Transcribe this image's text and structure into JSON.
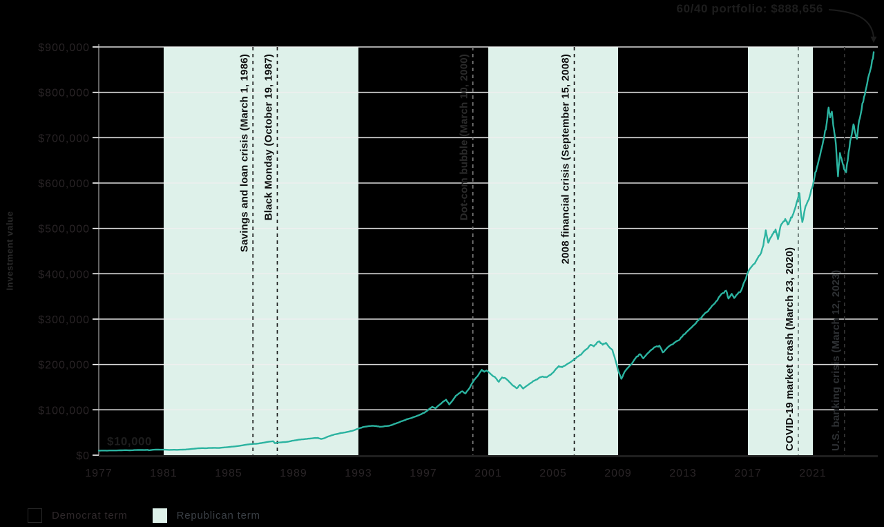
{
  "portfolio_label": "60/40 portfolio: $888,656",
  "start_label": "$10,000",
  "y_axis_title": "Investment value",
  "legend": {
    "democrat": "Democrat term",
    "republican": "Republican term"
  },
  "colors": {
    "background": "#000000",
    "line": "#2bb3a0",
    "band": "#def1ea",
    "grid": "#f0f0f0",
    "tick_text": "#292426",
    "dark_text": "#1d1d1d",
    "y_axis_line": "#c9c9c9",
    "x_axis_line": "#1f1f1f"
  },
  "chart_data": {
    "type": "line",
    "title": "",
    "xlabel": "",
    "ylabel": "Investment value",
    "x_range": [
      1977,
      2025
    ],
    "y_range": [
      0,
      900000
    ],
    "x_ticks": [
      1977,
      1981,
      1985,
      1989,
      1993,
      1997,
      2001,
      2005,
      2009,
      2013,
      2017,
      2021
    ],
    "y_ticks": [
      0,
      100000,
      200000,
      300000,
      400000,
      500000,
      600000,
      700000,
      800000,
      900000
    ],
    "grid": "horizontal-only",
    "legend_position": "bottom-left",
    "start_value": 10000,
    "end_value": 888656,
    "bands": {
      "label": "Republican term",
      "other_label": "Democrat term",
      "ranges": [
        [
          1981,
          1993
        ],
        [
          2001,
          2009
        ],
        [
          2017,
          2021
        ]
      ]
    },
    "events": [
      {
        "label": "Savings and loan crisis (March 1, 1986)",
        "x_year": 1986.5,
        "anchor": "top",
        "line_color": "#161616",
        "text_color": "#0e0e0e"
      },
      {
        "label": "Black Monday (October 19, 1987)",
        "x_year": 1988.0,
        "anchor": "top",
        "line_color": "#161616",
        "text_color": "#0e0e0e"
      },
      {
        "label": "Dot-com bubble (March 10, 2000)",
        "x_year": 2000.05,
        "anchor": "top",
        "line_color": "#7d7d7d",
        "text_color": "#2b2b2b"
      },
      {
        "label": "2008 financial crisis (September 15, 2008)",
        "x_year": 2006.3,
        "anchor": "top",
        "line_color": "#161616",
        "text_color": "#0e0e0e"
      },
      {
        "label": "COVID-19 market crash (March 23, 2020)",
        "x_year": 2020.1,
        "anchor": "bottom",
        "line_color": "#5c6b67",
        "text_color": "#0e0e0e"
      },
      {
        "label": "U.S. banking crisis (March 12, 2023)",
        "x_year": 2022.95,
        "anchor": "bottom",
        "line_color": "#333333",
        "text_color": "#2e3134"
      }
    ],
    "series": [
      {
        "name": "60/40 portfolio",
        "points": [
          [
            1977.0,
            10000
          ],
          [
            1977.25,
            10200
          ],
          [
            1977.5,
            10100
          ],
          [
            1977.75,
            10400
          ],
          [
            1978.0,
            10300
          ],
          [
            1978.3,
            10600
          ],
          [
            1978.6,
            10900
          ],
          [
            1978.9,
            10700
          ],
          [
            1979.2,
            11200
          ],
          [
            1979.5,
            11500
          ],
          [
            1979.8,
            11300
          ],
          [
            1980.0,
            11700
          ],
          [
            1980.1,
            10700
          ],
          [
            1980.35,
            11900
          ],
          [
            1980.6,
            12300
          ],
          [
            1980.85,
            12100
          ],
          [
            1981.1,
            12000
          ],
          [
            1981.35,
            11600
          ],
          [
            1981.6,
            11900
          ],
          [
            1981.85,
            11700
          ],
          [
            1982.1,
            12100
          ],
          [
            1982.35,
            12400
          ],
          [
            1982.6,
            13300
          ],
          [
            1982.85,
            14200
          ],
          [
            1983.1,
            15000
          ],
          [
            1983.35,
            15600
          ],
          [
            1983.6,
            15400
          ],
          [
            1983.85,
            15900
          ],
          [
            1984.1,
            16100
          ],
          [
            1984.35,
            15800
          ],
          [
            1984.6,
            16600
          ],
          [
            1984.85,
            17400
          ],
          [
            1985.1,
            18300
          ],
          [
            1985.35,
            19200
          ],
          [
            1985.6,
            20300
          ],
          [
            1985.85,
            21600
          ],
          [
            1986.1,
            23200
          ],
          [
            1986.35,
            24400
          ],
          [
            1986.6,
            24900
          ],
          [
            1986.85,
            25800
          ],
          [
            1987.1,
            27200
          ],
          [
            1987.35,
            28900
          ],
          [
            1987.6,
            30200
          ],
          [
            1987.75,
            30800
          ],
          [
            1987.85,
            26400
          ],
          [
            1988.0,
            27600
          ],
          [
            1988.25,
            28300
          ],
          [
            1988.5,
            29000
          ],
          [
            1988.75,
            30300
          ],
          [
            1989.0,
            32200
          ],
          [
            1989.25,
            33600
          ],
          [
            1989.5,
            34800
          ],
          [
            1989.75,
            35600
          ],
          [
            1990.0,
            36600
          ],
          [
            1990.25,
            37600
          ],
          [
            1990.5,
            38000
          ],
          [
            1990.7,
            35600
          ],
          [
            1990.9,
            37400
          ],
          [
            1991.1,
            40600
          ],
          [
            1991.35,
            43800
          ],
          [
            1991.6,
            46200
          ],
          [
            1991.85,
            48200
          ],
          [
            1992.1,
            49800
          ],
          [
            1992.35,
            51400
          ],
          [
            1992.6,
            53400
          ],
          [
            1992.85,
            56600
          ],
          [
            1993.1,
            59800
          ],
          [
            1993.35,
            62400
          ],
          [
            1993.6,
            63800
          ],
          [
            1993.85,
            64800
          ],
          [
            1994.1,
            64200
          ],
          [
            1994.3,
            62600
          ],
          [
            1994.55,
            63400
          ],
          [
            1994.8,
            64400
          ],
          [
            1995.05,
            66400
          ],
          [
            1995.3,
            69800
          ],
          [
            1995.55,
            73200
          ],
          [
            1995.8,
            76600
          ],
          [
            1996.05,
            79800
          ],
          [
            1996.3,
            82400
          ],
          [
            1996.55,
            85800
          ],
          [
            1996.8,
            89400
          ],
          [
            1997.05,
            93400
          ],
          [
            1997.3,
            99800
          ],
          [
            1997.55,
            106800
          ],
          [
            1997.75,
            103400
          ],
          [
            1997.95,
            109800
          ],
          [
            1998.15,
            115800
          ],
          [
            1998.4,
            122400
          ],
          [
            1998.6,
            111800
          ],
          [
            1998.8,
            120400
          ],
          [
            1999.0,
            130800
          ],
          [
            1999.2,
            136400
          ],
          [
            1999.4,
            140800
          ],
          [
            1999.6,
            136200
          ],
          [
            1999.8,
            145800
          ],
          [
            2000.0,
            158400
          ],
          [
            2000.2,
            168800
          ],
          [
            2000.4,
            177400
          ],
          [
            2000.6,
            188400
          ],
          [
            2000.75,
            183800
          ],
          [
            2000.9,
            186800
          ],
          [
            2001.05,
            182400
          ],
          [
            2001.25,
            175800
          ],
          [
            2001.45,
            170400
          ],
          [
            2001.65,
            161800
          ],
          [
            2001.85,
            171400
          ],
          [
            2002.05,
            169800
          ],
          [
            2002.3,
            161400
          ],
          [
            2002.55,
            152800
          ],
          [
            2002.75,
            147400
          ],
          [
            2002.95,
            154800
          ],
          [
            2003.15,
            146800
          ],
          [
            2003.35,
            152400
          ],
          [
            2003.6,
            158800
          ],
          [
            2003.85,
            164400
          ],
          [
            2004.1,
            169800
          ],
          [
            2004.35,
            173400
          ],
          [
            2004.6,
            171800
          ],
          [
            2004.85,
            177400
          ],
          [
            2005.1,
            186800
          ],
          [
            2005.35,
            196400
          ],
          [
            2005.55,
            193800
          ],
          [
            2005.8,
            199400
          ],
          [
            2006.05,
            204800
          ],
          [
            2006.3,
            211400
          ],
          [
            2006.55,
            217800
          ],
          [
            2006.8,
            225400
          ],
          [
            2007.05,
            233800
          ],
          [
            2007.3,
            243400
          ],
          [
            2007.5,
            239800
          ],
          [
            2007.7,
            248400
          ],
          [
            2007.85,
            250800
          ],
          [
            2008.05,
            243400
          ],
          [
            2008.25,
            247800
          ],
          [
            2008.45,
            238400
          ],
          [
            2008.65,
            231800
          ],
          [
            2008.85,
            207400
          ],
          [
            2009.05,
            181800
          ],
          [
            2009.2,
            168400
          ],
          [
            2009.4,
            183800
          ],
          [
            2009.65,
            194400
          ],
          [
            2009.9,
            204800
          ],
          [
            2010.15,
            217400
          ],
          [
            2010.35,
            222800
          ],
          [
            2010.55,
            213400
          ],
          [
            2010.8,
            223800
          ],
          [
            2011.05,
            232400
          ],
          [
            2011.3,
            238800
          ],
          [
            2011.55,
            241400
          ],
          [
            2011.75,
            226800
          ],
          [
            2011.95,
            233400
          ],
          [
            2012.2,
            241800
          ],
          [
            2012.45,
            247400
          ],
          [
            2012.7,
            252800
          ],
          [
            2012.95,
            261400
          ],
          [
            2013.2,
            270800
          ],
          [
            2013.45,
            279400
          ],
          [
            2013.7,
            287800
          ],
          [
            2013.95,
            297400
          ],
          [
            2014.2,
            306800
          ],
          [
            2014.45,
            315400
          ],
          [
            2014.7,
            324800
          ],
          [
            2014.95,
            334400
          ],
          [
            2015.2,
            347800
          ],
          [
            2015.45,
            357400
          ],
          [
            2015.65,
            362800
          ],
          [
            2015.8,
            345400
          ],
          [
            2016.0,
            355800
          ],
          [
            2016.15,
            346400
          ],
          [
            2016.35,
            354800
          ],
          [
            2016.6,
            364400
          ],
          [
            2016.8,
            383800
          ],
          [
            2017.0,
            403400
          ],
          [
            2017.25,
            416800
          ],
          [
            2017.5,
            428400
          ],
          [
            2017.75,
            441800
          ],
          [
            2017.95,
            462400
          ],
          [
            2018.1,
            495800
          ],
          [
            2018.25,
            468400
          ],
          [
            2018.4,
            479800
          ],
          [
            2018.55,
            488400
          ],
          [
            2018.7,
            497800
          ],
          [
            2018.85,
            476400
          ],
          [
            2019.0,
            503800
          ],
          [
            2019.15,
            513400
          ],
          [
            2019.3,
            520800
          ],
          [
            2019.45,
            508400
          ],
          [
            2019.6,
            517800
          ],
          [
            2019.75,
            528400
          ],
          [
            2019.9,
            543800
          ],
          [
            2020.05,
            562400
          ],
          [
            2020.17,
            577800
          ],
          [
            2020.28,
            528400
          ],
          [
            2020.35,
            513800
          ],
          [
            2020.5,
            541400
          ],
          [
            2020.65,
            556800
          ],
          [
            2020.8,
            570400
          ],
          [
            2020.95,
            588800
          ],
          [
            2021.1,
            612400
          ],
          [
            2021.25,
            634800
          ],
          [
            2021.4,
            655400
          ],
          [
            2021.55,
            677800
          ],
          [
            2021.7,
            702400
          ],
          [
            2021.85,
            731800
          ],
          [
            2021.97,
            766400
          ],
          [
            2022.07,
            744800
          ],
          [
            2022.17,
            757400
          ],
          [
            2022.3,
            717800
          ],
          [
            2022.42,
            684400
          ],
          [
            2022.55,
            614800
          ],
          [
            2022.67,
            666400
          ],
          [
            2022.8,
            648800
          ],
          [
            2022.92,
            631400
          ],
          [
            2023.05,
            623800
          ],
          [
            2023.2,
            667400
          ],
          [
            2023.35,
            699800
          ],
          [
            2023.5,
            729400
          ],
          [
            2023.6,
            711800
          ],
          [
            2023.72,
            697400
          ],
          [
            2023.85,
            737800
          ],
          [
            2024.0,
            761400
          ],
          [
            2024.15,
            789800
          ],
          [
            2024.3,
            811400
          ],
          [
            2024.45,
            837800
          ],
          [
            2024.6,
            857400
          ],
          [
            2024.75,
            888656
          ]
        ]
      }
    ]
  }
}
